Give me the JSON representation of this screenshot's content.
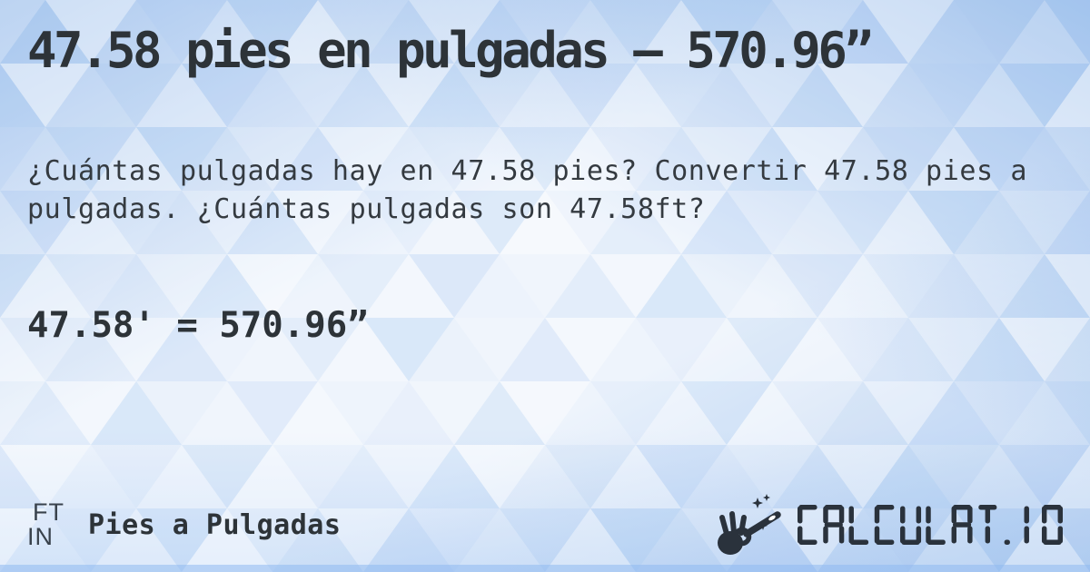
{
  "hero": {
    "title": "47.58 pies en pulgadas — 570.96”",
    "description": "¿Cuántas pulgadas hay en 47.58 pies? Convertir 47.58 pies a pulgadas. ¿Cuántas pulgadas son 47.58ft?",
    "result": "47.58' = 570.96”"
  },
  "footer": {
    "unit_badge": {
      "from": "FT",
      "to": "IN"
    },
    "converter_label": "Pies a Pulgadas",
    "brand": {
      "wordmark": "CALCULAT.IO",
      "icon": "magic-wand-hand-icon"
    }
  },
  "colors": {
    "text_dark": "#2d3338",
    "brand_navy": "#2a323c",
    "mosaic_blue": "#9dc2f0",
    "background_base": "#eef4fc",
    "bottom_band": "#90b9f0"
  }
}
